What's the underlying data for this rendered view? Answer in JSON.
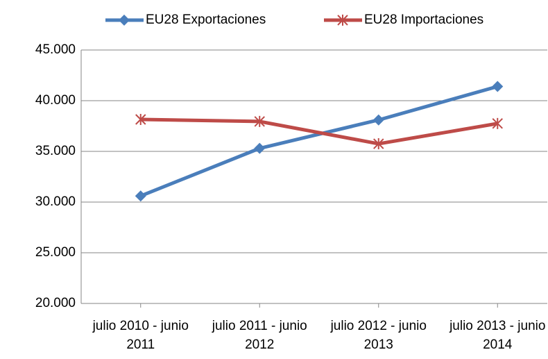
{
  "chart_data": {
    "type": "line",
    "categories": [
      "julio 2010 - junio 2011",
      "julio 2011 - junio 2012",
      "julio 2012 - junio 2013",
      "julio 2013 - junio 2014"
    ],
    "series": [
      {
        "name": "EU28 Exportaciones",
        "color": "#4a7ebb",
        "marker": "diamond",
        "values": [
          30600,
          35300,
          38100,
          41400
        ]
      },
      {
        "name": "EU28 Importaciones",
        "color": "#be4b48",
        "marker": "star",
        "values": [
          38150,
          37950,
          35750,
          37750
        ]
      }
    ],
    "ylim": [
      20000,
      45000
    ],
    "yticks": [
      {
        "value": 20000,
        "label": "20.000"
      },
      {
        "value": 25000,
        "label": "25.000"
      },
      {
        "value": 30000,
        "label": "30.000"
      },
      {
        "value": 35000,
        "label": "35.000"
      },
      {
        "value": 40000,
        "label": "40.000"
      },
      {
        "value": 45000,
        "label": "45.000"
      }
    ],
    "grid": true,
    "legend": "top"
  }
}
